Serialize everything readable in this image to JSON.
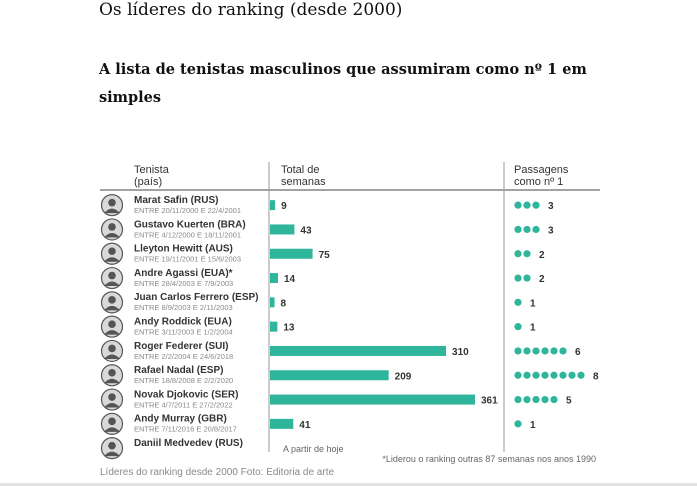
{
  "page": {
    "headline": "Os líderes do ranking (desde 2000)",
    "subheadline": "A lista de tenistas masculinos que assumiram como nº 1 em simples",
    "caption": "Líderes do ranking desde 2000 Foto: Editoria de arte"
  },
  "colors": {
    "accent": "#2fb59b",
    "grid": "#9a9a9a",
    "text": "#333333",
    "muted": "#8a8a8a"
  },
  "chart_data": {
    "type": "bar",
    "headers": {
      "player": [
        "Tenista",
        "(país)"
      ],
      "weeks": [
        "Total de",
        "semanas"
      ],
      "passes": [
        "Passagens",
        "como nº 1"
      ]
    },
    "players": [
      {
        "name": "Marat Safin (RUS)",
        "period": "ENTRE 20/11/2000 E 22/4/2001",
        "weeks": 9,
        "passes": 3
      },
      {
        "name": "Gustavo Kuerten (BRA)",
        "period": "ENTRE 4/12/2000 E 18/11/2001",
        "weeks": 43,
        "passes": 3
      },
      {
        "name": "Lleyton Hewitt (AUS)",
        "period": "ENTRE 19/11/2001 E 15/6/2003",
        "weeks": 75,
        "passes": 2
      },
      {
        "name": "Andre Agassi (EUA)*",
        "period": "ENTRE 28/4/2003 E 7/9/2003",
        "weeks": 14,
        "passes": 2
      },
      {
        "name": "Juan Carlos Ferrero (ESP)",
        "period": "ENTRE 8/9/2003 E 2/11/2003",
        "weeks": 8,
        "passes": 1
      },
      {
        "name": "Andy Roddick (EUA)",
        "period": "ENTRE 3/11/2003 E 1/2/2004",
        "weeks": 13,
        "passes": 1
      },
      {
        "name": "Roger Federer (SUI)",
        "period": "ENTRE 2/2/2004 E 24/6/2018",
        "weeks": 310,
        "passes": 6
      },
      {
        "name": "Rafael Nadal (ESP)",
        "period": "ENTRE 18/8/2008 E 2/2/2020",
        "weeks": 209,
        "passes": 8
      },
      {
        "name": "Novak Djokovic (SER)",
        "period": "ENTRE 4/7/2011 E 27/2/2022",
        "weeks": 361,
        "passes": 5
      },
      {
        "name": "Andy Murray (GBR)",
        "period": "ENTRE 7/11/2016 E 20/8/2017",
        "weeks": 41,
        "passes": 1
      },
      {
        "name": "Daniil Medvedev (RUS)",
        "period": "",
        "weeks": null,
        "passes": null,
        "weeks_note": "A partir de hoje"
      }
    ],
    "footnote": "*Liderou o ranking outras 87 semanas nos anos 1990"
  }
}
